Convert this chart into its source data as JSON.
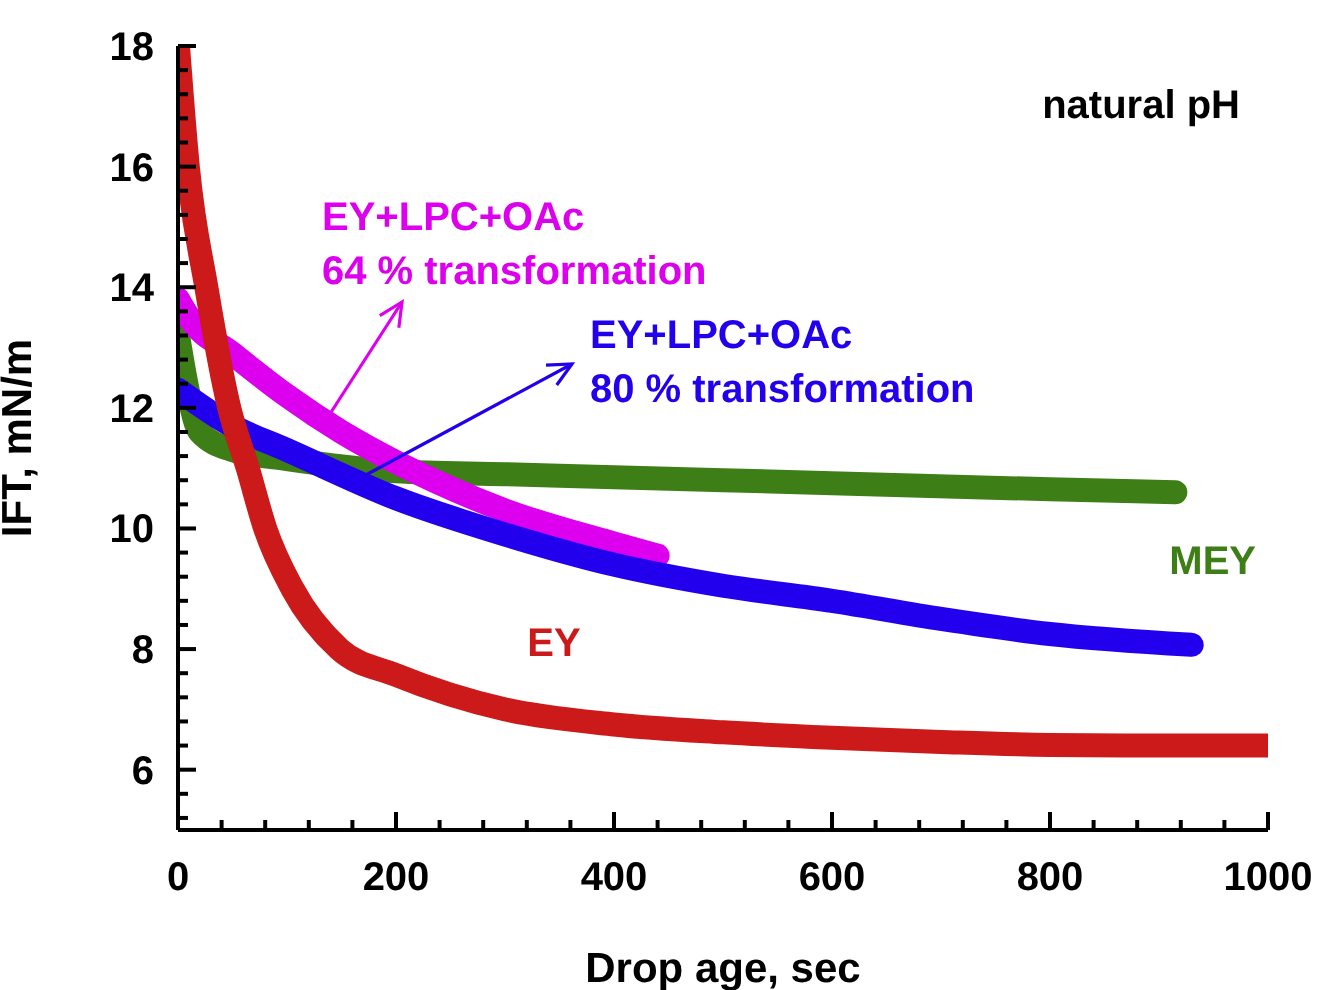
{
  "chart_data": {
    "type": "line",
    "xlabel": "Drop age, sec",
    "ylabel": "IFT, mN/m",
    "marker": "none",
    "line_style": "solid",
    "annotations": [
      "natural pH"
    ],
    "xlim": [
      0,
      1000
    ],
    "ylim": [
      5,
      18
    ],
    "xticks": [
      0,
      {
        "value": 40,
        "label": null
      },
      {
        "value": 80,
        "label": null
      },
      {
        "value": 120,
        "label": null
      },
      {
        "value": 160,
        "label": null
      },
      200,
      {
        "value": 240,
        "label": null
      },
      {
        "value": 280,
        "label": null
      },
      {
        "value": 320,
        "label": null
      },
      {
        "value": 360,
        "label": null
      },
      400,
      {
        "value": 440,
        "label": null
      },
      {
        "value": 480,
        "label": null
      },
      {
        "value": 520,
        "label": null
      },
      {
        "value": 560,
        "label": null
      },
      600,
      {
        "value": 640,
        "label": null
      },
      {
        "value": 680,
        "label": null
      },
      {
        "value": 720,
        "label": null
      },
      {
        "value": 760,
        "label": null
      },
      800,
      {
        "value": 840,
        "label": null
      },
      {
        "value": 880,
        "label": null
      },
      {
        "value": 920,
        "label": null
      },
      {
        "value": 960,
        "label": null
      },
      1000
    ],
    "yticks": [
      {
        "value": 5.2,
        "label": null
      },
      {
        "value": 5.6,
        "label": null
      },
      6,
      {
        "value": 6.4,
        "label": null
      },
      {
        "value": 6.8,
        "label": null
      },
      {
        "value": 7.2,
        "label": null
      },
      {
        "value": 7.6,
        "label": null
      },
      8,
      {
        "value": 8.4,
        "label": null
      },
      {
        "value": 8.8,
        "label": null
      },
      {
        "value": 9.2,
        "label": null
      },
      {
        "value": 9.6,
        "label": null
      },
      10,
      {
        "value": 10.4,
        "label": null
      },
      {
        "value": 10.8,
        "label": null
      },
      {
        "value": 11.2,
        "label": null
      },
      {
        "value": 11.6,
        "label": null
      },
      12,
      {
        "value": 12.4,
        "label": null
      },
      {
        "value": 12.8,
        "label": null
      },
      {
        "value": 13.2,
        "label": null
      },
      {
        "value": 13.6,
        "label": null
      },
      14,
      {
        "value": 14.4,
        "label": null
      },
      {
        "value": 14.8,
        "label": null
      },
      {
        "value": 15.2,
        "label": null
      },
      {
        "value": 15.6,
        "label": null
      },
      16,
      {
        "value": 16.4,
        "label": null
      },
      {
        "value": 16.8,
        "label": null
      },
      {
        "value": 17.2,
        "label": null
      },
      {
        "value": 17.6,
        "label": null
      },
      18
    ],
    "series": [
      {
        "name": "MEY",
        "color": "#3d7f16",
        "x": [
          0,
          10,
          20,
          50,
          100,
          200,
          300,
          400,
          600,
          800,
          915
        ],
        "values": [
          13.2,
          12.2,
          11.6,
          11.3,
          11.15,
          10.95,
          10.9,
          10.85,
          10.75,
          10.65,
          10.6
        ]
      },
      {
        "name": "EY+LPC+OAc\n64 % transformation",
        "color": "#dd00ee",
        "x": [
          0,
          10,
          50,
          100,
          150,
          200,
          300,
          400,
          440
        ],
        "values": [
          13.8,
          13.5,
          12.9,
          12.2,
          11.6,
          11.1,
          10.3,
          9.75,
          9.55
        ]
      },
      {
        "name": "EY+LPC+OAc\n80 % transformation",
        "color": "#2200ee",
        "x": [
          0,
          50,
          100,
          200,
          300,
          400,
          500,
          600,
          700,
          800,
          930
        ],
        "values": [
          12.3,
          11.7,
          11.3,
          10.5,
          9.9,
          9.4,
          9.05,
          8.8,
          8.5,
          8.25,
          8.07
        ]
      },
      {
        "name": "EY",
        "color": "#cc1a1a",
        "x": [
          0,
          9,
          26,
          47,
          64,
          80,
          105,
          148,
          200,
          300,
          400,
          500,
          600,
          700,
          800,
          900,
          1000
        ],
        "values": [
          18,
          16,
          14,
          12,
          11,
          10,
          9,
          8,
          7.57,
          7.0,
          6.75,
          6.62,
          6.53,
          6.46,
          6.41,
          6.4,
          6.4
        ]
      }
    ]
  }
}
